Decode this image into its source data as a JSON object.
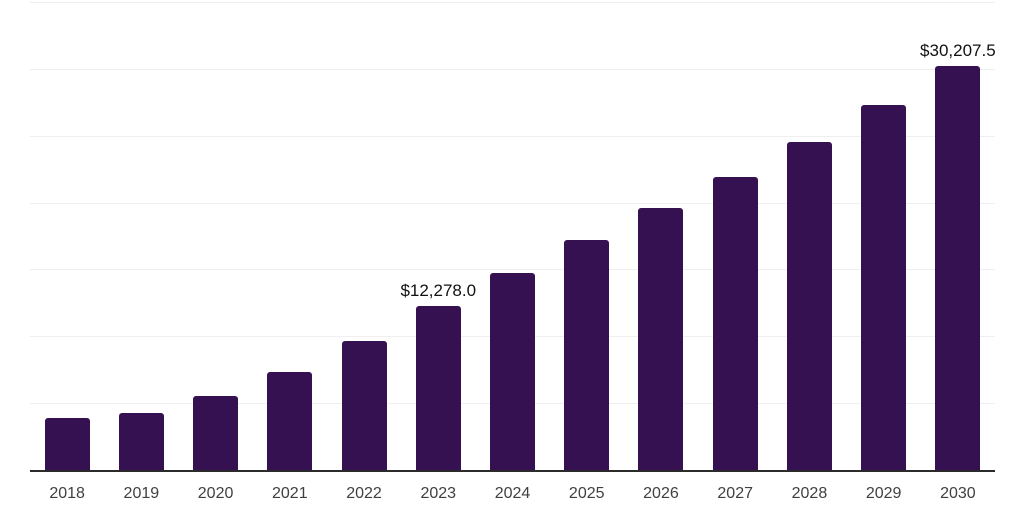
{
  "chart_data": {
    "type": "bar",
    "title": "",
    "xlabel": "",
    "ylabel": "",
    "categories": [
      "2018",
      "2019",
      "2020",
      "2021",
      "2022",
      "2023",
      "2024",
      "2025",
      "2026",
      "2027",
      "2028",
      "2029",
      "2030"
    ],
    "values": [
      3900,
      4300,
      5500,
      7300,
      9670,
      12278.0,
      14770,
      17200,
      19570,
      21920,
      24500,
      27300,
      30207.5
    ],
    "data_labels": {
      "2023": "$12,278.0",
      "2030": "$30,207.5"
    },
    "ylim": [
      0,
      35000
    ],
    "gridline_step": 5000,
    "grid": "horizontal",
    "legend": "none",
    "y_axis_tick_labels": "none",
    "colors": {
      "bar": "#351151",
      "axis_line": "#2b2b2b",
      "gridline": "#efefef",
      "tick_label": "#404040",
      "data_label": "#111111",
      "background": "#ffffff"
    }
  }
}
